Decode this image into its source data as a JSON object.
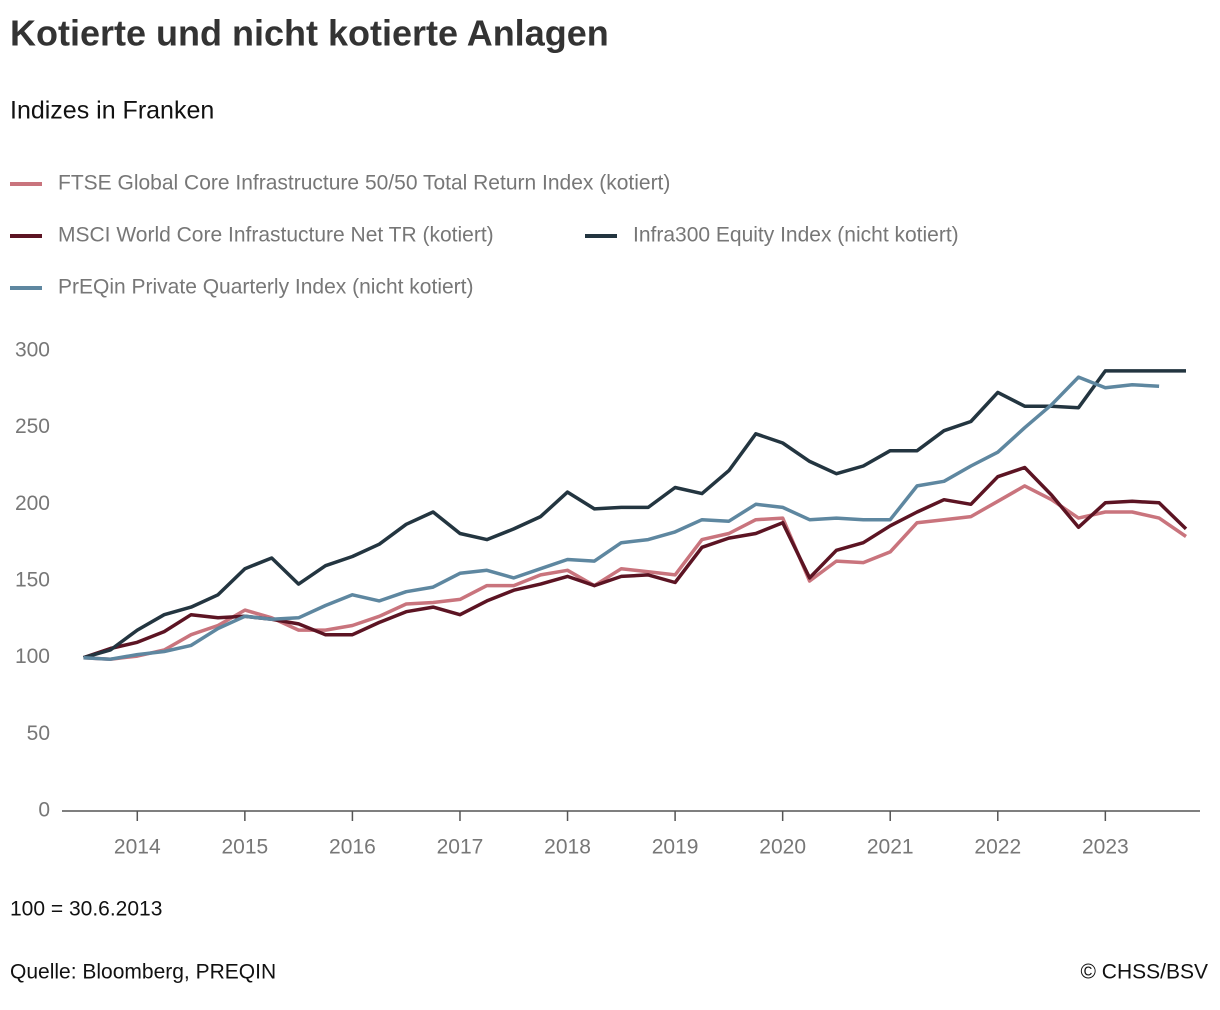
{
  "chart_data": {
    "type": "line",
    "title": "Kotierte und nicht kotierte Anlagen",
    "subtitle": "Indizes in Franken",
    "note": "100 = 30.6.2013",
    "source": "Quelle: Bloomberg, PREQIN",
    "credit": "© CHSS/BSV",
    "x": [
      2013.5,
      2013.75,
      2014,
      2014.25,
      2014.5,
      2014.75,
      2015,
      2015.25,
      2015.5,
      2015.75,
      2016,
      2016.25,
      2016.5,
      2016.75,
      2017,
      2017.25,
      2017.5,
      2017.75,
      2018,
      2018.25,
      2018.5,
      2018.75,
      2019,
      2019.25,
      2019.5,
      2019.75,
      2020,
      2020.25,
      2020.5,
      2020.75,
      2021,
      2021.25,
      2021.5,
      2021.75,
      2022,
      2022.25,
      2022.5,
      2022.75,
      2023,
      2023.25,
      2023.5,
      2023.75
    ],
    "series": [
      {
        "name": "FTSE Global Core Infrastructure 50/50 Total Return Index (kotiert)",
        "color": "#c9747d",
        "values": [
          100,
          99,
          101,
          105,
          115,
          121,
          131,
          126,
          118,
          118,
          121,
          127,
          135,
          136,
          138,
          147,
          147,
          154,
          157,
          147,
          158,
          156,
          154,
          177,
          181,
          190,
          191,
          150,
          163,
          162,
          169,
          188,
          190,
          192,
          202,
          212,
          203,
          191,
          195,
          195,
          191,
          179
        ]
      },
      {
        "name": "MSCI World Core Infrastucture Net TR (kotiert)",
        "color": "#5c1423",
        "values": [
          100,
          106,
          110,
          117,
          128,
          126,
          127,
          125,
          122,
          115,
          115,
          123,
          130,
          133,
          128,
          137,
          144,
          148,
          153,
          147,
          153,
          154,
          149,
          172,
          178,
          181,
          188,
          152,
          170,
          175,
          186,
          195,
          203,
          200,
          218,
          224,
          206,
          185,
          201,
          202,
          201,
          184
        ]
      },
      {
        "name": "Infra300 Equity Index (nicht kotiert)",
        "color": "#233540",
        "values": [
          100,
          105,
          118,
          128,
          133,
          141,
          158,
          165,
          148,
          160,
          166,
          174,
          187,
          195,
          181,
          177,
          184,
          192,
          208,
          197,
          198,
          198,
          211,
          207,
          222,
          246,
          240,
          228,
          220,
          225,
          235,
          235,
          248,
          254,
          273,
          264,
          264,
          263,
          287,
          287,
          287,
          287
        ]
      },
      {
        "name": "PrEQin Private Quarterly Index (nicht kotiert)",
        "color": "#5e87a0",
        "values": [
          100,
          99,
          102,
          104,
          108,
          119,
          127,
          125,
          126,
          134,
          141,
          137,
          143,
          146,
          155,
          157,
          152,
          158,
          164,
          163,
          175,
          177,
          182,
          190,
          189,
          200,
          198,
          190,
          191,
          190,
          190,
          212,
          215,
          225,
          234,
          250,
          265,
          283,
          276,
          278,
          277,
          null
        ]
      }
    ],
    "xlim": [
      2013.3,
      2023.88
    ],
    "xticks": [
      2014,
      2015,
      2016,
      2017,
      2018,
      2019,
      2020,
      2021,
      2022,
      2023
    ],
    "ylim": [
      0,
      300
    ],
    "yticks": [
      0,
      50,
      100,
      150,
      200,
      250,
      300
    ]
  }
}
